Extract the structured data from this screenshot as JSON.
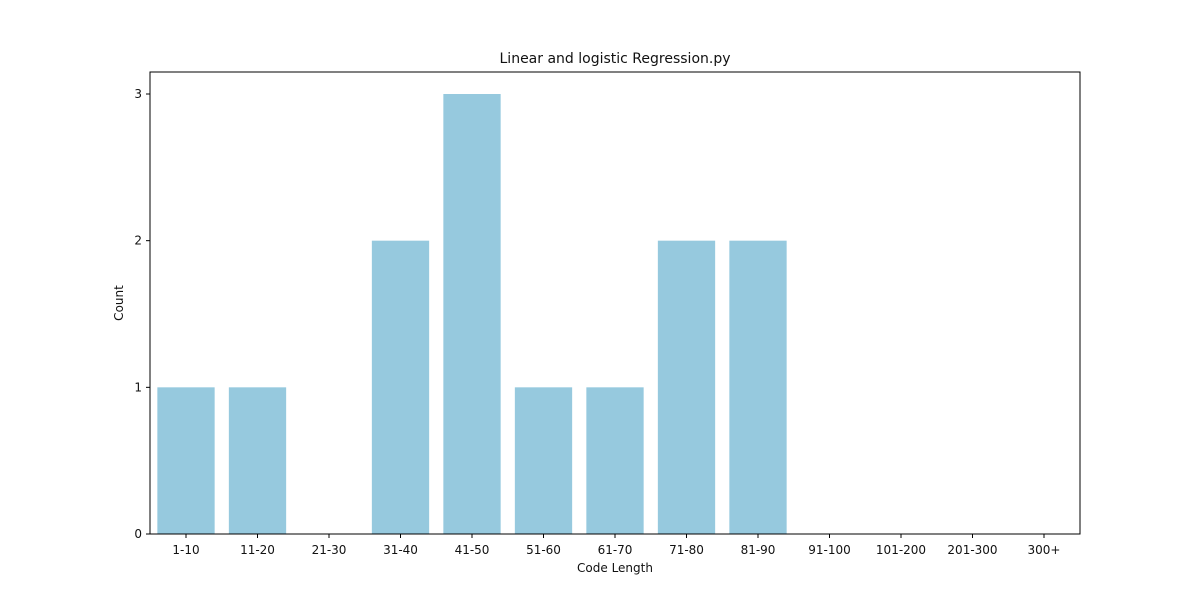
{
  "chart_data": {
    "type": "bar",
    "title": "Linear and logistic Regression.py",
    "xlabel": "Code Length",
    "ylabel": "Count",
    "categories": [
      "1-10",
      "11-20",
      "21-30",
      "31-40",
      "41-50",
      "51-60",
      "61-70",
      "71-80",
      "81-90",
      "91-100",
      "101-200",
      "201-300",
      "300+"
    ],
    "values": [
      1,
      1,
      0,
      2,
      3,
      1,
      1,
      2,
      2,
      0,
      0,
      0,
      0
    ],
    "ylim": [
      0,
      3.15
    ],
    "yticks": [
      0,
      1,
      2,
      3
    ],
    "grid": false,
    "bar_color": "#96c9de"
  }
}
